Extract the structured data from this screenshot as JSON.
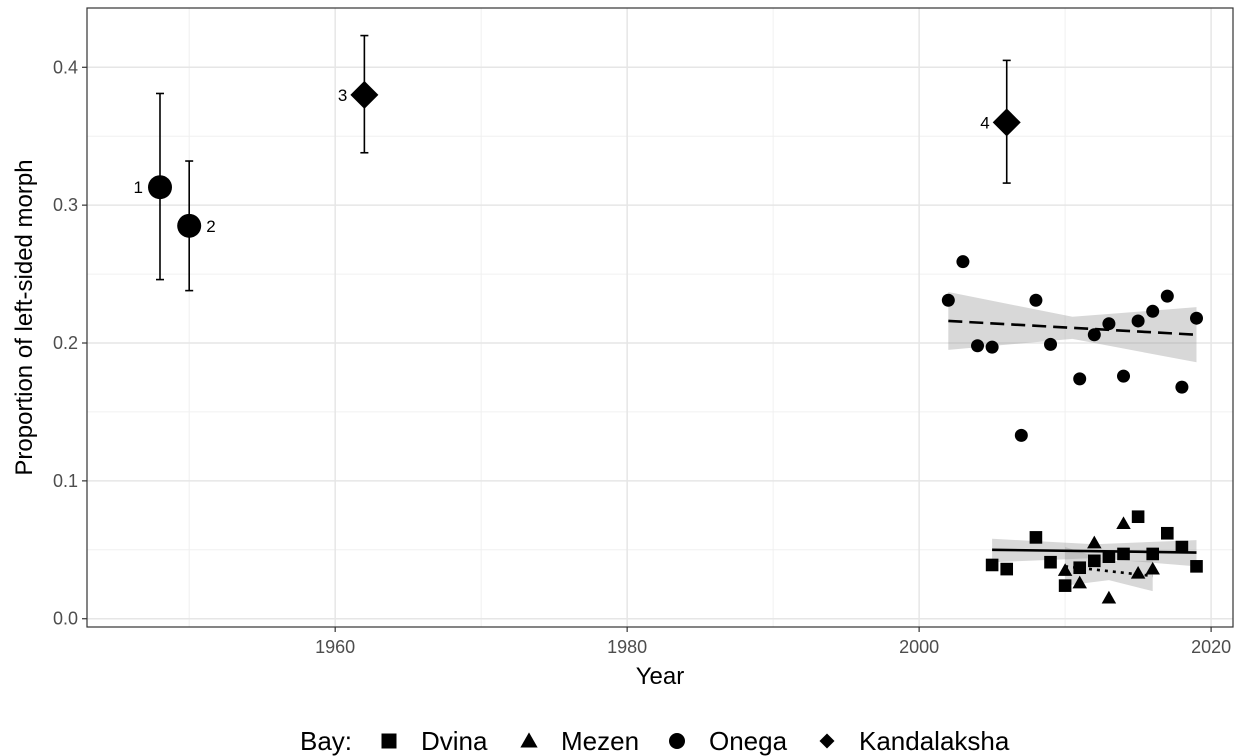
{
  "chart_data": {
    "type": "scatter",
    "xlabel": "Year",
    "ylabel": "Proportion of left-sided morph",
    "xlim": [
      1943,
      2021.5
    ],
    "ylim": [
      -0.006,
      0.443
    ],
    "x_ticks": [
      1960,
      1980,
      2000,
      2020
    ],
    "y_ticks": [
      0.0,
      0.1,
      0.2,
      0.3,
      0.4
    ],
    "x_tick_labels": [
      "1960",
      "1980",
      "2000",
      "2020"
    ],
    "y_tick_labels": [
      "0.0",
      "0.1",
      "0.2",
      "0.3",
      "0.4"
    ],
    "grid": true,
    "legend": {
      "title": "Bay:",
      "position": "bottom",
      "entries": [
        {
          "label": "Dvina",
          "shape": "square"
        },
        {
          "label": "Mezen",
          "shape": "triangle"
        },
        {
          "label": "Onega",
          "shape": "circle"
        },
        {
          "label": "Kandalaksha",
          "shape": "diamond"
        }
      ]
    },
    "historical_points": [
      {
        "label": "1",
        "bay": "Onega",
        "x": 1948,
        "y": 0.313,
        "ymin": 0.246,
        "ymax": 0.381
      },
      {
        "label": "2",
        "bay": "Onega",
        "x": 1950,
        "y": 0.285,
        "ymin": 0.238,
        "ymax": 0.332
      },
      {
        "label": "3",
        "bay": "Kandalaksha",
        "x": 1962,
        "y": 0.38,
        "ymin": 0.338,
        "ymax": 0.423
      },
      {
        "label": "4",
        "bay": "Kandalaksha",
        "x": 2006,
        "y": 0.36,
        "ymin": 0.316,
        "ymax": 0.405
      }
    ],
    "series": [
      {
        "bay": "Onega",
        "shape": "circle",
        "x": [
          2002,
          2003,
          2004,
          2005,
          2007,
          2008,
          2009,
          2011,
          2012,
          2013,
          2014,
          2015,
          2016,
          2017,
          2018,
          2019
        ],
        "y": [
          0.231,
          0.259,
          0.198,
          0.197,
          0.133,
          0.231,
          0.199,
          0.174,
          0.206,
          0.214,
          0.176,
          0.216,
          0.223,
          0.234,
          0.168,
          0.218
        ],
        "trend": {
          "style": "dashed",
          "x": [
            2002,
            2019
          ],
          "y": [
            0.216,
            0.206
          ]
        },
        "band": {
          "x": [
            2002,
            2010.5,
            2019
          ],
          "lower": [
            0.195,
            0.203,
            0.186
          ],
          "upper": [
            0.237,
            0.219,
            0.226
          ]
        }
      },
      {
        "bay": "Dvina",
        "shape": "square",
        "x": [
          2005,
          2006,
          2008,
          2009,
          2010,
          2011,
          2012,
          2013,
          2014,
          2015,
          2016,
          2017,
          2018,
          2019
        ],
        "y": [
          0.039,
          0.036,
          0.059,
          0.041,
          0.024,
          0.037,
          0.042,
          0.045,
          0.047,
          0.074,
          0.047,
          0.062,
          0.052,
          0.038
        ],
        "trend": {
          "style": "solid",
          "x": [
            2005,
            2019
          ],
          "y": [
            0.05,
            0.048
          ]
        },
        "band": {
          "x": [
            2005,
            2012,
            2019
          ],
          "lower": [
            0.041,
            0.044,
            0.038
          ],
          "upper": [
            0.058,
            0.054,
            0.057
          ]
        }
      },
      {
        "bay": "Mezen",
        "shape": "triangle",
        "x": [
          2010,
          2011,
          2012,
          2013,
          2014,
          2015,
          2016
        ],
        "y": [
          0.035,
          0.026,
          0.055,
          0.015,
          0.069,
          0.033,
          0.036
        ],
        "trend": {
          "style": "dotted",
          "x": [
            2010,
            2016
          ],
          "y": [
            0.038,
            0.031
          ]
        },
        "band": {
          "x": [
            2010,
            2013,
            2016
          ],
          "lower": [
            0.024,
            0.028,
            0.02
          ],
          "upper": [
            0.052,
            0.042,
            0.042
          ]
        }
      }
    ]
  }
}
